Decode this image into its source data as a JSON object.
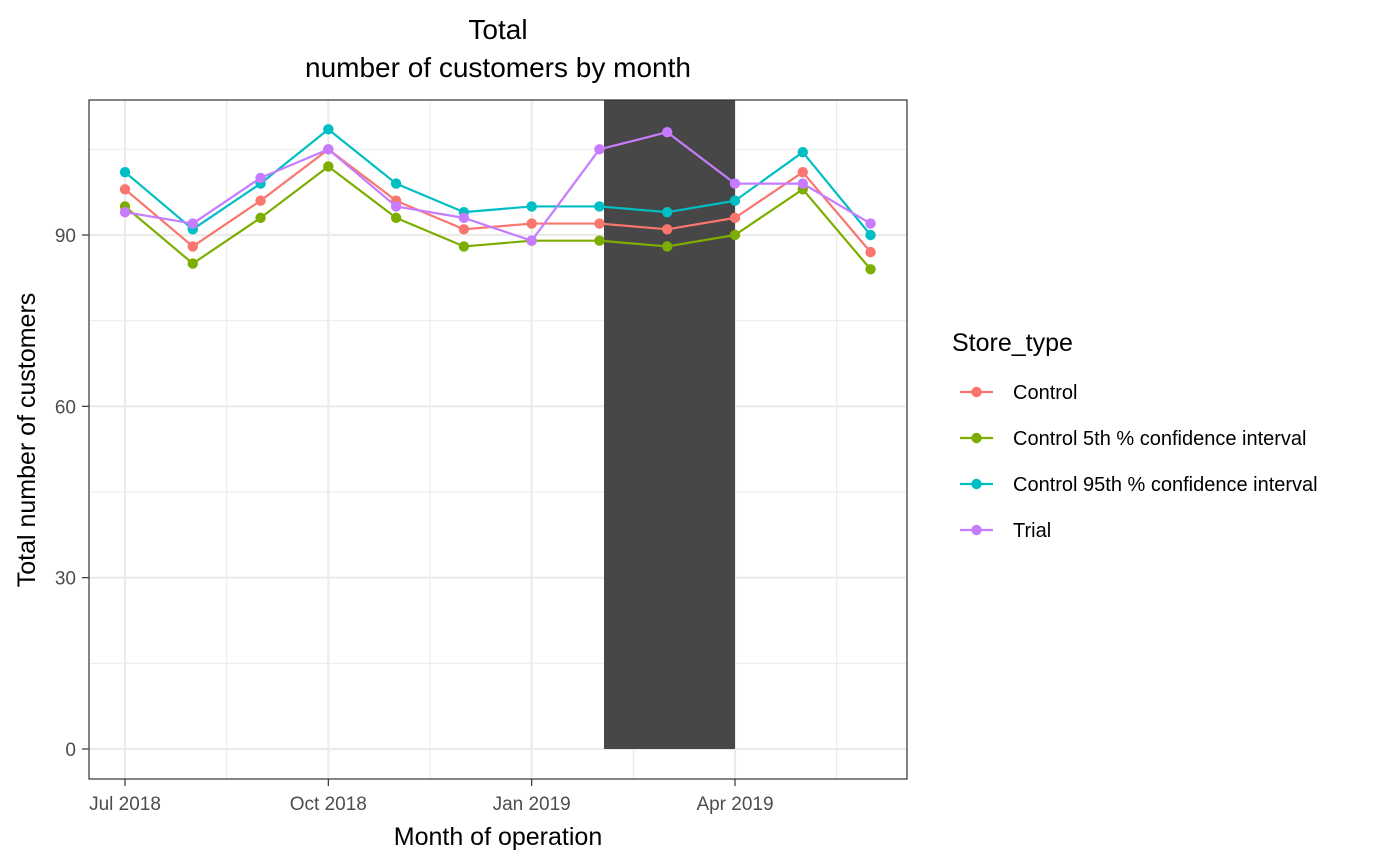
{
  "chart_data": {
    "type": "line",
    "title": [
      "Total",
      "number of customers by month"
    ],
    "xlabel": "Month of operation",
    "ylabel": "Total number of customers",
    "x": [
      "2018-07",
      "2018-08",
      "2018-09",
      "2018-10",
      "2018-11",
      "2018-12",
      "2019-01",
      "2019-02",
      "2019-03",
      "2019-04",
      "2019-05",
      "2019-06"
    ],
    "x_ticks": [
      {
        "value": "2018-07",
        "label": "Jul 2018"
      },
      {
        "value": "2018-10",
        "label": "Oct 2018"
      },
      {
        "value": "2019-01",
        "label": "Jan 2019"
      },
      {
        "value": "2019-04",
        "label": "Apr 2019"
      }
    ],
    "y_ticks": [
      0,
      30,
      60,
      90
    ],
    "ylim": [
      -5,
      113
    ],
    "grid": true,
    "highlight_period": {
      "from": "2019-02",
      "to": "2019-04",
      "color": "#474747"
    },
    "legend": {
      "title": "Store_type",
      "position": "right"
    },
    "series": [
      {
        "name": "Control",
        "color": "#F8766D",
        "values": [
          98,
          88,
          96,
          105,
          96,
          91,
          92,
          92,
          91,
          93,
          101,
          87
        ]
      },
      {
        "name": "Control 5th % confidence interval",
        "color": "#7CAE00",
        "values": [
          95,
          85,
          93,
          102,
          93,
          88,
          89,
          89,
          88,
          90,
          98,
          84
        ]
      },
      {
        "name": "Control 95th % confidence interval",
        "color": "#00BFC4",
        "values": [
          101,
          91,
          99,
          108.5,
          99,
          94,
          95,
          95,
          94,
          96,
          104.5,
          90
        ]
      },
      {
        "name": "Trial",
        "color": "#C77CFF",
        "values": [
          94,
          92,
          100,
          105,
          95,
          93,
          89,
          105,
          108,
          99,
          99,
          92
        ]
      }
    ]
  }
}
